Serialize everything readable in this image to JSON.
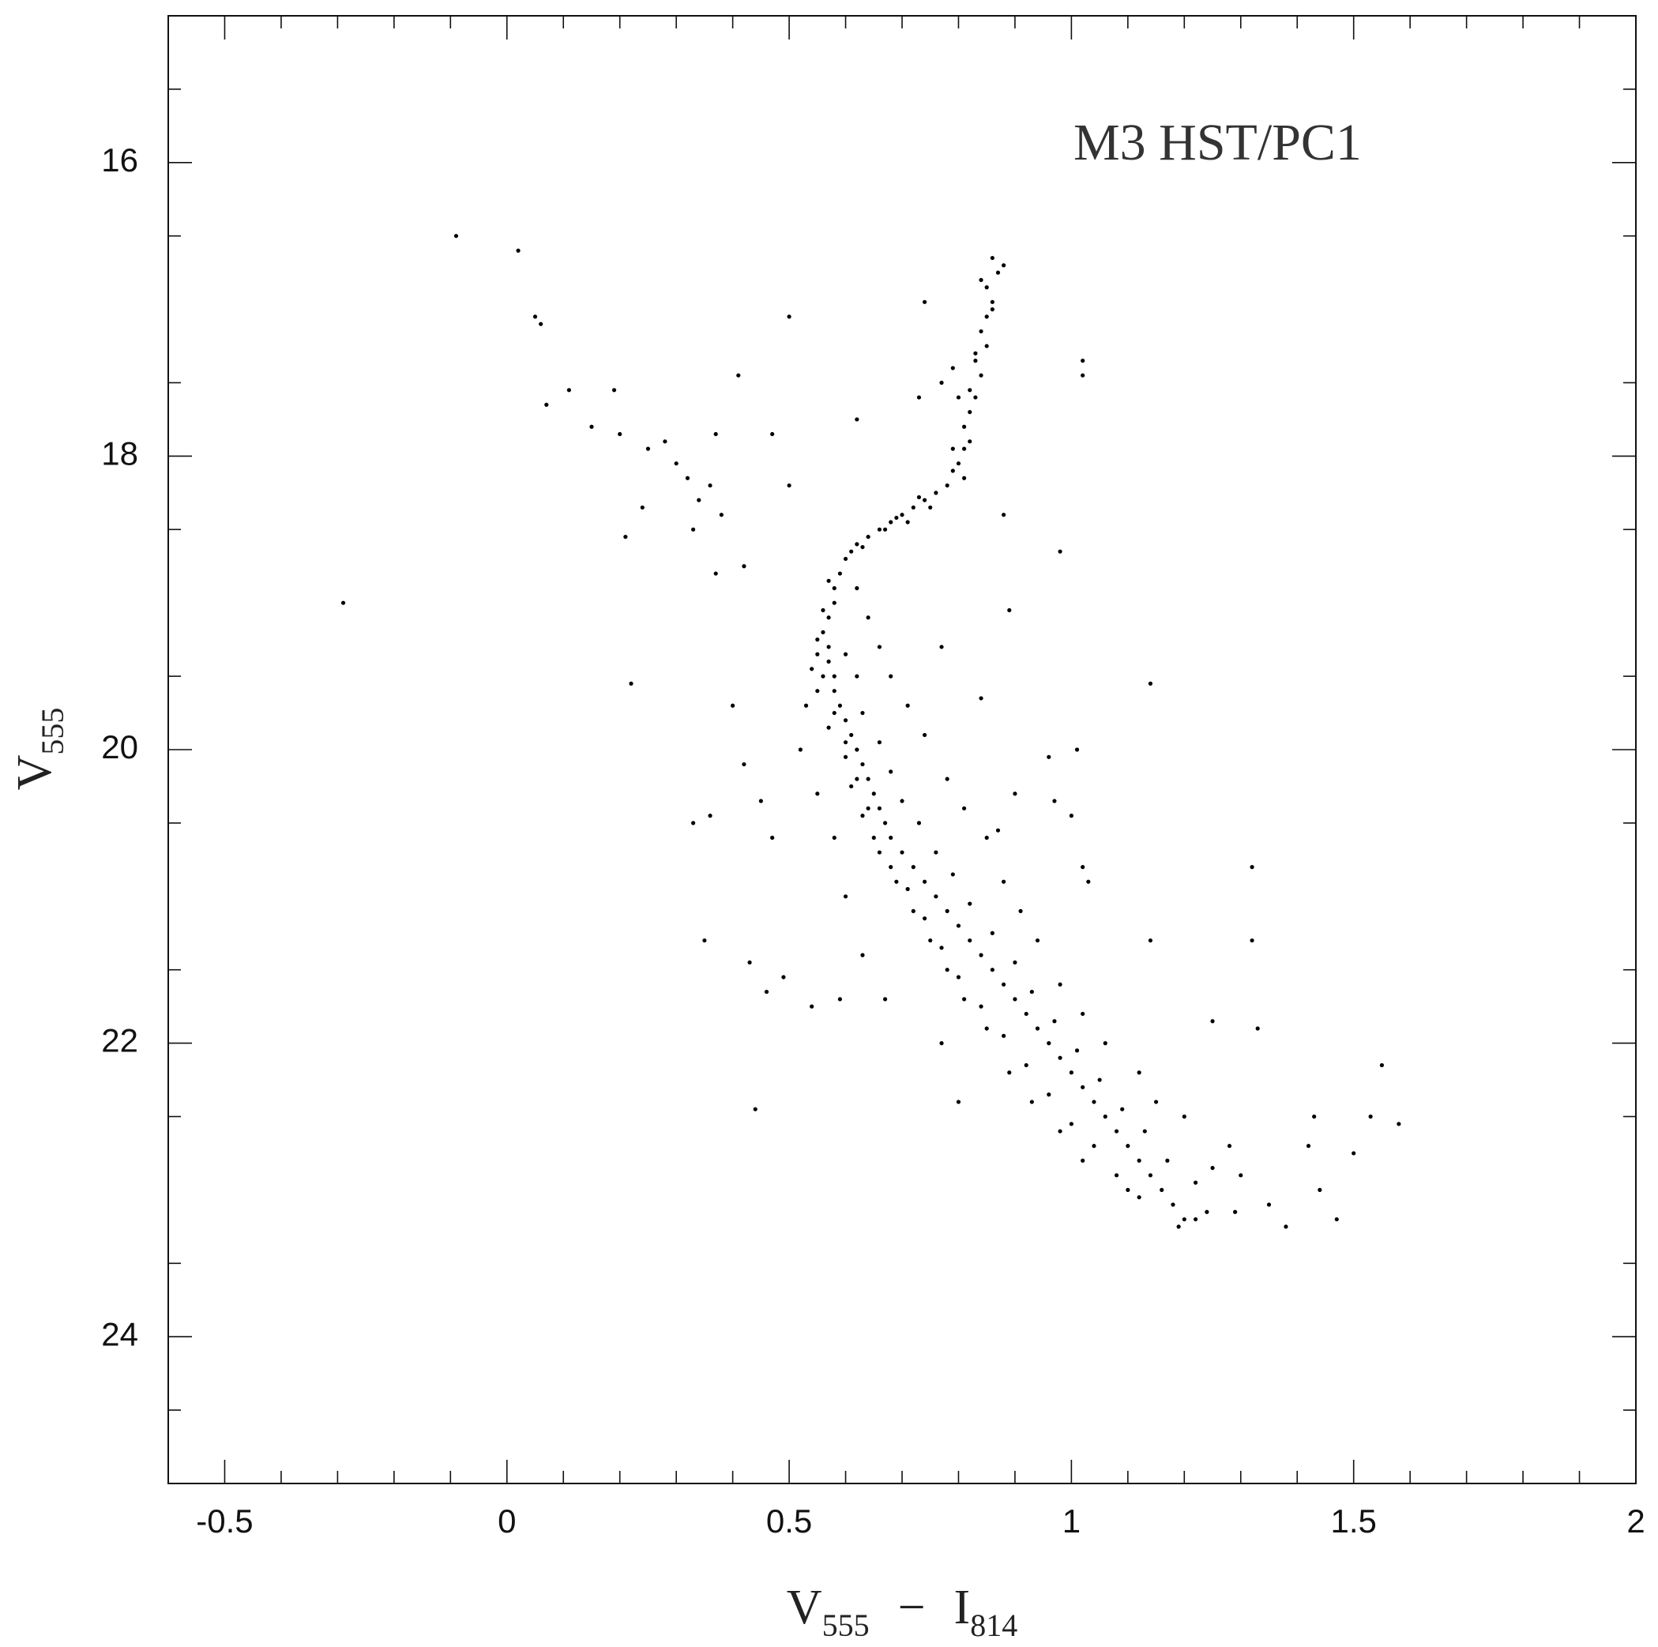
{
  "chart_data": {
    "type": "scatter",
    "annotation": "M3 HST/PC1",
    "xlabel": [
      "V",
      "555",
      "−",
      "I",
      "814"
    ],
    "ylabel": [
      "V",
      "555"
    ],
    "xlim": [
      -0.6,
      2
    ],
    "ylim": [
      25,
      15
    ],
    "inverted_y": true,
    "xticks": [
      -0.5,
      0,
      0.5,
      1,
      1.5,
      2
    ],
    "yticks": [
      16,
      18,
      20,
      22,
      24
    ],
    "xminorticks": [
      -0.4,
      -0.3,
      -0.2,
      -0.1,
      0.1,
      0.2,
      0.3,
      0.4,
      0.6,
      0.7,
      0.8,
      0.9,
      1.1,
      1.2,
      1.3,
      1.4,
      1.6,
      1.7,
      1.8,
      1.9
    ],
    "yminorticks": [
      15.5,
      16.5,
      17.5,
      18.5,
      19.5,
      20.5,
      21.5,
      22.5,
      23.5,
      24.5
    ],
    "color": "#000000",
    "x": [
      0.86,
      0.87,
      0.85,
      0.86,
      0.85,
      0.84,
      0.85,
      0.83,
      0.84,
      0.82,
      0.83,
      0.82,
      0.81,
      0.82,
      0.81,
      0.8,
      0.79,
      0.88,
      0.84,
      0.86,
      0.83,
      0.8,
      0.79,
      0.77,
      0.81,
      0.78,
      0.76,
      0.74,
      0.72,
      0.7,
      0.68,
      0.66,
      0.64,
      0.62,
      0.61,
      0.6,
      0.75,
      0.71,
      0.67,
      0.63,
      0.73,
      0.69,
      0.59,
      0.58,
      0.58,
      0.57,
      0.56,
      0.57,
      0.57,
      0.58,
      0.58,
      0.59,
      0.6,
      0.61,
      0.62,
      0.63,
      0.64,
      0.65,
      0.66,
      0.67,
      0.68,
      0.7,
      0.72,
      0.74,
      0.76,
      0.78,
      0.8,
      0.82,
      0.84,
      0.86,
      0.88,
      0.9,
      0.92,
      0.94,
      0.96,
      0.98,
      1.0,
      1.02,
      1.04,
      1.06,
      1.08,
      1.1,
      1.12,
      1.14,
      1.16,
      1.18,
      1.2,
      0.55,
      0.6,
      0.62,
      0.55,
      0.63,
      0.57,
      0.66,
      0.6,
      0.68,
      0.61,
      0.7,
      0.63,
      0.73,
      0.65,
      0.76,
      0.68,
      0.79,
      0.71,
      0.82,
      0.74,
      0.86,
      0.77,
      0.9,
      0.8,
      0.93,
      0.84,
      0.97,
      0.88,
      1.01,
      0.92,
      1.05,
      0.96,
      1.09,
      1.0,
      1.13,
      1.04,
      1.17,
      1.08,
      1.22,
      1.12,
      1.25,
      1.28,
      1.3,
      1.24,
      1.1,
      1.02,
      0.98,
      1.2,
      1.15,
      0.93,
      0.89,
      1.12,
      0.85,
      1.06,
      0.81,
      1.02,
      0.78,
      0.98,
      0.75,
      0.94,
      0.72,
      0.91,
      0.69,
      0.88,
      0.66,
      0.85,
      0.64,
      0.81,
      0.62,
      0.78,
      0.6,
      0.74,
      0.58,
      0.71,
      0.56,
      0.68,
      0.55,
      0.66,
      0.56,
      0.64,
      0.57,
      0.62,
      0.54,
      0.53,
      0.52,
      0.55,
      0.58,
      0.6,
      0.63,
      0.67,
      -0.09,
      0.02,
      0.05,
      0.06,
      0.11,
      0.07,
      0.15,
      0.2,
      0.19,
      0.25,
      0.28,
      0.3,
      0.32,
      0.34,
      0.36,
      0.37,
      0.38,
      0.33,
      0.21,
      0.24,
      0.37,
      0.42,
      0.41,
      0.47,
      0.5,
      0.5,
      0.62,
      0.74,
      0.73,
      0.79,
      1.02,
      1.02,
      -0.29,
      0.22,
      0.89,
      0.98,
      1.14,
      0.77,
      0.84,
      0.33,
      0.36,
      0.4,
      0.42,
      0.45,
      0.47,
      0.35,
      0.43,
      0.46,
      0.49,
      0.44,
      0.54,
      0.59,
      0.77,
      0.8,
      1.01,
      1.0,
      0.97,
      0.96,
      1.02,
      1.03,
      1.14,
      1.32,
      1.32,
      1.33,
      1.25,
      1.55,
      1.43,
      1.53,
      1.58,
      1.5,
      1.44,
      1.47,
      1.38,
      1.35,
      1.42,
      1.29,
      1.19,
      1.22,
      0.88,
      0.9,
      0.87
    ],
    "values": [
      16.65,
      16.75,
      16.85,
      16.95,
      17.05,
      17.15,
      17.25,
      17.35,
      17.45,
      17.55,
      17.6,
      17.7,
      17.8,
      17.9,
      17.95,
      18.05,
      18.1,
      16.7,
      16.8,
      17.0,
      17.3,
      17.6,
      17.95,
      17.5,
      18.15,
      18.2,
      18.25,
      18.3,
      18.35,
      18.4,
      18.45,
      18.5,
      18.55,
      18.6,
      18.65,
      18.7,
      18.35,
      18.45,
      18.5,
      18.62,
      18.28,
      18.42,
      18.8,
      18.9,
      19.0,
      19.1,
      19.2,
      19.3,
      19.4,
      19.5,
      19.6,
      19.7,
      19.8,
      19.9,
      20.0,
      20.1,
      20.2,
      20.3,
      20.4,
      20.5,
      20.6,
      20.7,
      20.8,
      20.9,
      21.0,
      21.1,
      21.2,
      21.3,
      21.4,
      21.5,
      21.6,
      21.7,
      21.8,
      21.9,
      22.0,
      22.1,
      22.2,
      22.3,
      22.4,
      22.5,
      22.6,
      22.7,
      22.8,
      22.9,
      23.0,
      23.1,
      23.2,
      19.25,
      19.35,
      19.5,
      19.6,
      19.75,
      19.85,
      19.95,
      20.05,
      20.15,
      20.25,
      20.35,
      20.45,
      20.5,
      20.6,
      20.7,
      20.8,
      20.85,
      20.95,
      21.05,
      21.15,
      21.25,
      21.35,
      21.45,
      21.55,
      21.65,
      21.75,
      21.85,
      21.95,
      22.05,
      22.15,
      22.25,
      22.35,
      22.45,
      22.55,
      22.6,
      22.7,
      22.8,
      22.9,
      22.95,
      23.05,
      22.85,
      22.7,
      22.9,
      23.15,
      23.0,
      22.8,
      22.6,
      22.5,
      22.4,
      22.4,
      22.2,
      22.2,
      21.9,
      22.0,
      21.7,
      21.8,
      21.5,
      21.6,
      21.3,
      21.3,
      21.1,
      21.1,
      20.9,
      20.9,
      20.7,
      20.6,
      20.4,
      20.4,
      20.2,
      20.2,
      19.95,
      19.9,
      19.75,
      19.7,
      19.5,
      19.5,
      19.35,
      19.3,
      19.05,
      19.1,
      18.85,
      18.9,
      19.45,
      19.7,
      20.0,
      20.3,
      20.6,
      21.0,
      21.4,
      21.7,
      16.5,
      16.6,
      17.05,
      17.1,
      17.55,
      17.65,
      17.8,
      17.85,
      17.55,
      17.95,
      17.9,
      18.05,
      18.15,
      18.3,
      18.2,
      17.85,
      18.4,
      18.5,
      18.55,
      18.35,
      18.8,
      18.75,
      17.45,
      17.85,
      18.2,
      17.05,
      17.75,
      16.95,
      17.6,
      17.4,
      17.45,
      17.35,
      19.0,
      19.55,
      19.05,
      18.65,
      19.55,
      19.3,
      19.65,
      20.5,
      20.45,
      19.7,
      20.1,
      20.35,
      20.6,
      21.3,
      21.45,
      21.65,
      21.55,
      22.45,
      21.75,
      21.7,
      22.0,
      22.4,
      20.0,
      20.45,
      20.35,
      20.05,
      20.8,
      20.9,
      21.3,
      20.8,
      21.3,
      21.9,
      21.85,
      22.15,
      22.5,
      22.5,
      22.55,
      22.75,
      23.0,
      23.2,
      23.25,
      23.1,
      22.7,
      23.15,
      23.25,
      23.2,
      18.4,
      20.3,
      20.55
    ]
  }
}
